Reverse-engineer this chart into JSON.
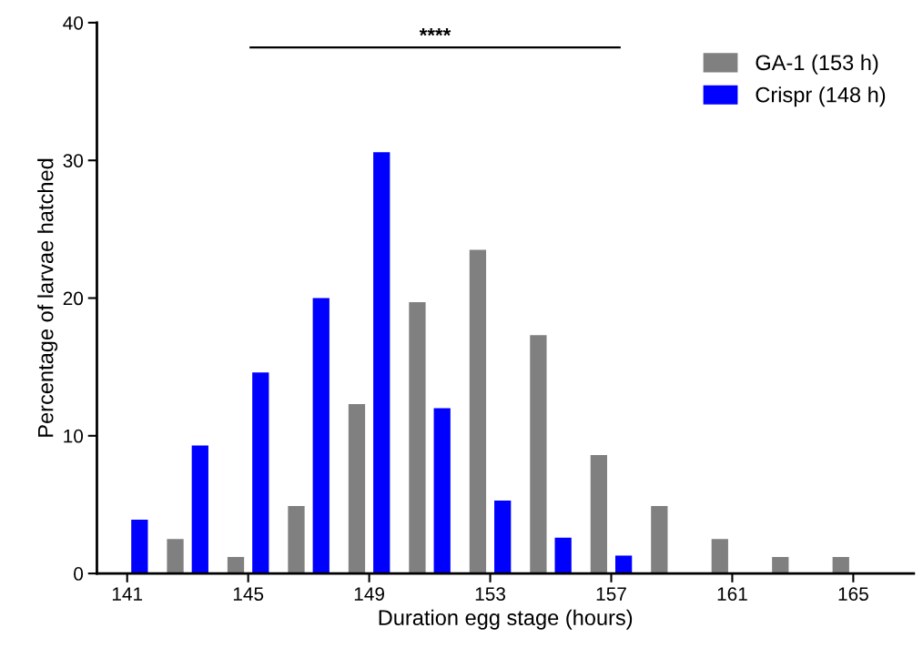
{
  "chart_data": {
    "type": "bar",
    "xlabel": "Duration egg stage (hours)",
    "ylabel": "Percentage of larvae hatched",
    "series": [
      {
        "name": "GA-1 (153 h)",
        "color": "#808080",
        "x": [
          141,
          143,
          145,
          147,
          149,
          151,
          153,
          155,
          157,
          159,
          161,
          163,
          165
        ],
        "values": [
          0,
          2.5,
          1.2,
          4.9,
          12.3,
          19.7,
          23.5,
          17.3,
          8.6,
          4.9,
          2.5,
          1.2,
          1.2
        ]
      },
      {
        "name": "Crispr (148 h)",
        "color": "#0000ff",
        "x": [
          141,
          143,
          145,
          147,
          149,
          151,
          153,
          155,
          157,
          159,
          161,
          163,
          165
        ],
        "values": [
          3.9,
          9.3,
          14.6,
          20.0,
          30.6,
          12.0,
          5.3,
          2.6,
          1.3,
          0,
          0,
          0,
          0
        ]
      }
    ],
    "xlim": [
      140,
      167
    ],
    "xticks": [
      141,
      145,
      149,
      153,
      157,
      161,
      165
    ],
    "ylim": [
      0,
      40
    ],
    "yticks": [
      0,
      10,
      20,
      30,
      40
    ],
    "annotations": [
      "****"
    ],
    "legend": "top right",
    "grid": false
  }
}
